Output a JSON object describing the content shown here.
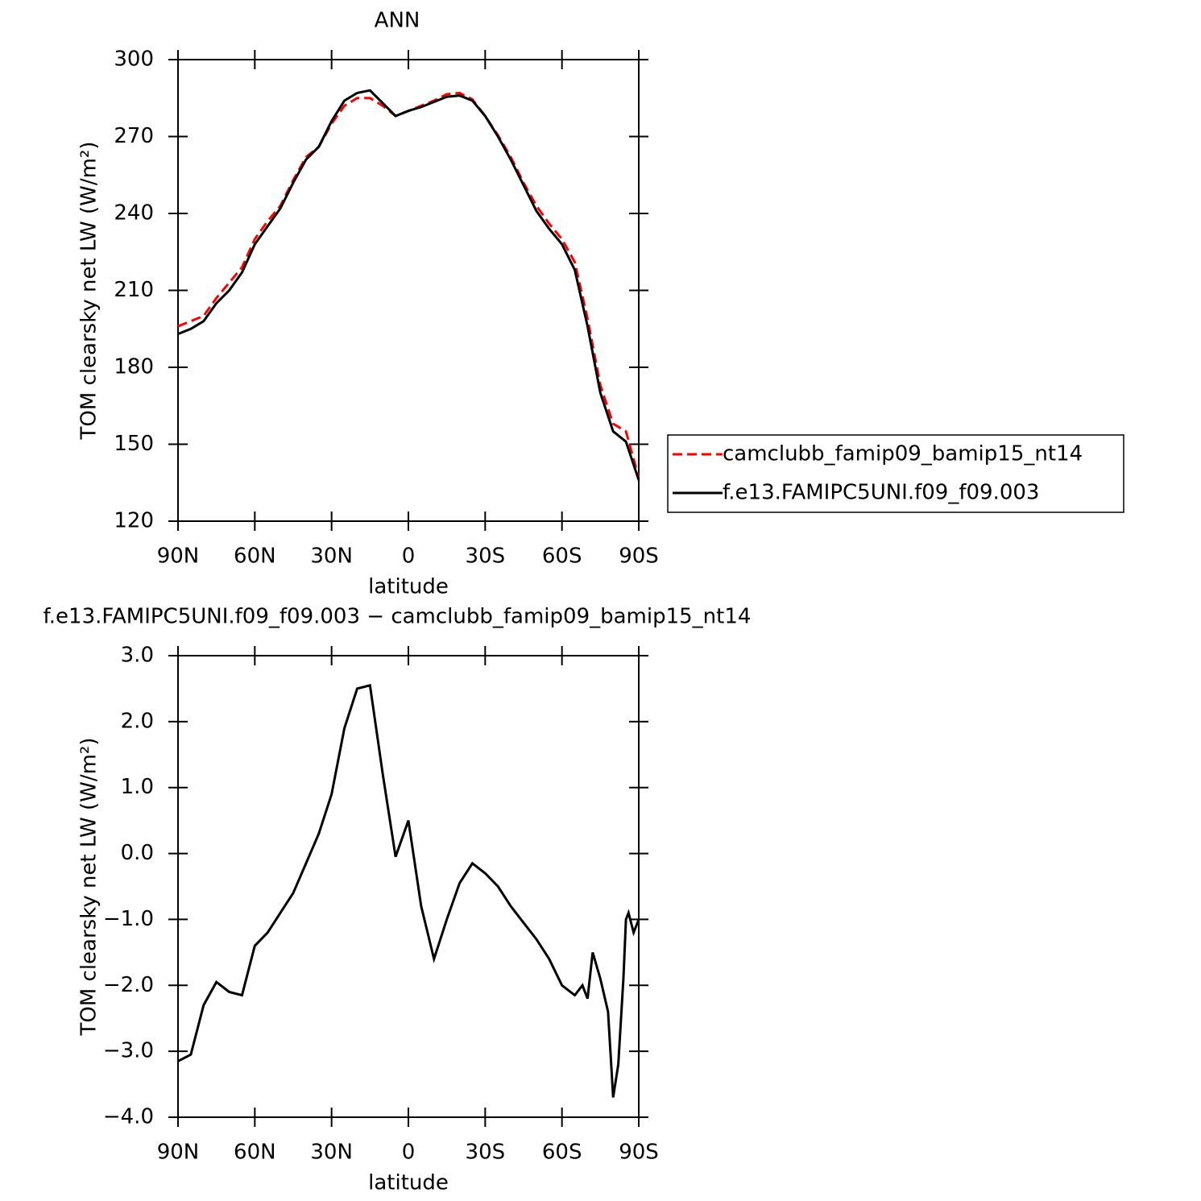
{
  "chart_data": [
    {
      "type": "line",
      "title": "ANN",
      "x_label": "latitude",
      "y_label": "TOM clearsky net LW (W/m²)",
      "x": [
        90,
        85,
        80,
        75,
        70,
        65,
        60,
        55,
        50,
        45,
        40,
        35,
        30,
        25,
        20,
        15,
        10,
        5,
        0,
        -5,
        -10,
        -15,
        -20,
        -25,
        -30,
        -35,
        -40,
        -45,
        -50,
        -55,
        -60,
        -65,
        -70,
        -75,
        -80,
        -85,
        -90
      ],
      "xlim": [
        90,
        -90
      ],
      "xticks": [
        {
          "value": 90,
          "label": "90N"
        },
        {
          "value": 60,
          "label": "60N"
        },
        {
          "value": 30,
          "label": "30N"
        },
        0,
        {
          "value": -30,
          "label": "30S"
        },
        {
          "value": -60,
          "label": "60S"
        },
        {
          "value": -90,
          "label": "90S"
        }
      ],
      "ylim": [
        120,
        300
      ],
      "yticks": [
        120,
        150,
        180,
        210,
        240,
        270,
        300
      ],
      "legend": "right",
      "series": [
        {
          "name": "camclubb_famip09_bamip15_nt14",
          "color": "#ff0000",
          "dashed": true,
          "values": [
            196,
            198,
            200,
            207,
            213,
            219,
            230,
            237,
            243,
            253,
            262,
            266,
            275,
            282,
            285,
            285,
            282,
            278,
            280,
            282,
            284,
            286.5,
            287,
            284.5,
            278,
            270.5,
            262,
            252,
            243,
            236,
            230,
            221,
            199,
            173,
            158,
            155,
            137
          ]
        },
        {
          "name": "f.e13.FAMIPC5UNI.f09_f09.003",
          "color": "#000000",
          "dashed": false,
          "values": [
            193,
            195,
            198,
            205,
            210,
            217,
            228,
            235,
            242,
            252,
            261,
            266,
            276,
            284,
            287,
            288,
            283,
            278,
            280,
            281.5,
            283.5,
            285.5,
            286,
            284,
            278,
            270,
            261,
            251,
            241,
            234,
            228,
            218,
            196,
            170,
            155,
            151,
            136
          ]
        }
      ]
    },
    {
      "type": "line",
      "title": "f.e13.FAMIPC5UNI.f09_f09.003 − camclubb_famip09_bamip15_nt14",
      "x_label": "latitude",
      "y_label": "TOM clearsky net LW (W/m²)",
      "x": [
        90,
        85,
        80,
        75,
        70,
        65,
        60,
        55,
        50,
        45,
        40,
        35,
        30,
        25,
        20,
        15,
        10,
        5,
        0,
        -5,
        -10,
        -15,
        -20,
        -25,
        -30,
        -35,
        -40,
        -45,
        -50,
        -55,
        -60,
        -65,
        -68,
        -70,
        -72,
        -75,
        -78,
        -80,
        -82,
        -84,
        -85,
        -86,
        -88,
        -90
      ],
      "xlim": [
        90,
        -90
      ],
      "xticks": [
        {
          "value": 90,
          "label": "90N"
        },
        {
          "value": 60,
          "label": "60N"
        },
        {
          "value": 30,
          "label": "30N"
        },
        0,
        {
          "value": -30,
          "label": "30S"
        },
        {
          "value": -60,
          "label": "60S"
        },
        {
          "value": -90,
          "label": "90S"
        }
      ],
      "ylim": [
        -4,
        3
      ],
      "yticks": [
        {
          "value": -4,
          "label": "−4.0"
        },
        {
          "value": -3,
          "label": "−3.0"
        },
        {
          "value": -2,
          "label": "−2.0"
        },
        {
          "value": -1,
          "label": "−1.0"
        },
        {
          "value": 0,
          "label": "0.0"
        },
        {
          "value": 1,
          "label": "1.0"
        },
        {
          "value": 2,
          "label": "2.0"
        },
        {
          "value": 3,
          "label": "3.0"
        }
      ],
      "series": [
        {
          "color": "#000000",
          "dashed": false,
          "values": [
            -3.15,
            -3.05,
            -2.3,
            -1.95,
            -2.1,
            -2.15,
            -1.4,
            -1.2,
            -0.9,
            -0.6,
            -0.15,
            0.3,
            0.9,
            1.9,
            2.5,
            2.55,
            1.2,
            -0.05,
            0.5,
            -0.8,
            -1.6,
            -1.0,
            -0.45,
            -0.15,
            -0.3,
            -0.5,
            -0.8,
            -1.05,
            -1.3,
            -1.6,
            -2.0,
            -2.15,
            -2.0,
            -2.2,
            -1.5,
            -1.9,
            -2.4,
            -3.7,
            -3.2,
            -1.9,
            -1.0,
            -0.9,
            -1.2,
            -1.0
          ]
        }
      ]
    }
  ]
}
